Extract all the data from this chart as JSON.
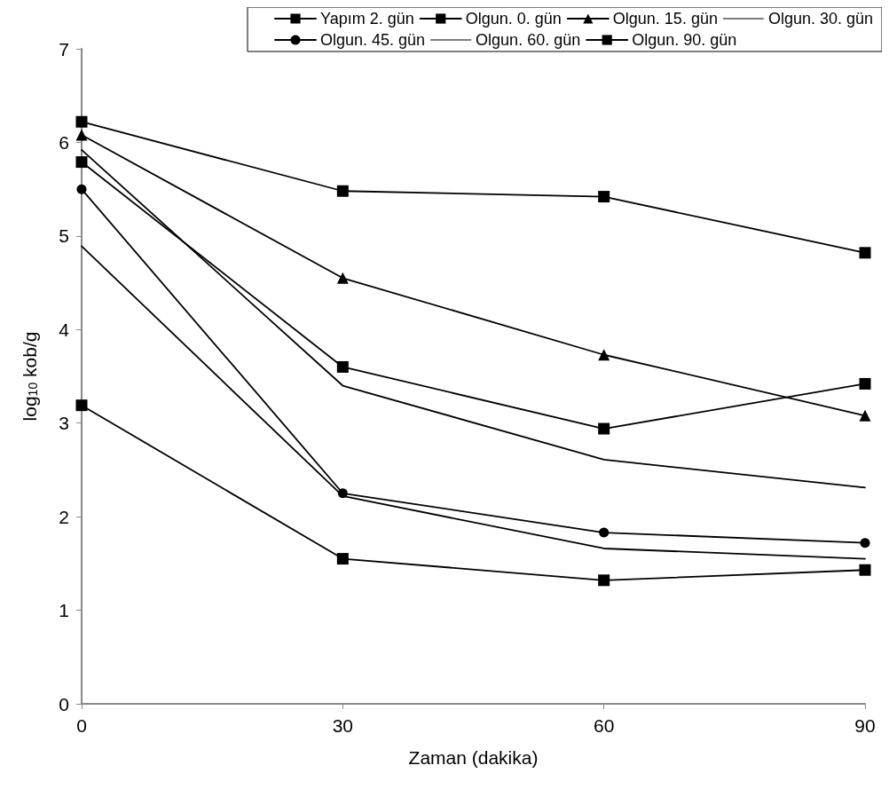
{
  "chart_data": {
    "type": "line",
    "xlabel": "Zaman (dakika)",
    "ylabel": "log$_{10}$ kob/g",
    "x": [
      0,
      30,
      60,
      90
    ],
    "xlim": [
      0,
      90
    ],
    "xticks": [
      0,
      30,
      60,
      90
    ],
    "ylim": [
      0,
      7
    ],
    "yticks": [
      0,
      1,
      2,
      3,
      4,
      5,
      6,
      7
    ],
    "grid": false,
    "legend": "top right",
    "series": [
      {
        "name": "Yapım 2. gün",
        "color": "#000000",
        "marker": "square",
        "values": [
          5.79,
          3.6,
          2.94,
          3.42
        ]
      },
      {
        "name": "Olgun. 0. gün",
        "color": "#000000",
        "marker": "square",
        "values": [
          6.22,
          5.48,
          5.42,
          4.82
        ]
      },
      {
        "name": "Olgun. 15. gün",
        "color": "#000000",
        "marker": "triangle",
        "values": [
          6.08,
          4.55,
          3.73,
          3.08
        ]
      },
      {
        "name": "Olgun. 30. gün",
        "color": "#000000",
        "marker": "none",
        "values": [
          5.92,
          3.4,
          2.61,
          2.31
        ]
      },
      {
        "name": "Olgun. 45. gün",
        "color": "#000000",
        "marker": "circle",
        "values": [
          5.5,
          2.25,
          1.83,
          1.72
        ]
      },
      {
        "name": "Olgun. 60. gün",
        "color": "#000000",
        "marker": "none",
        "values": [
          4.89,
          2.22,
          1.66,
          1.55
        ]
      },
      {
        "name": "Olgun. 90. gün",
        "color": "#000000",
        "marker": "square",
        "values": [
          3.19,
          1.55,
          1.32,
          1.43
        ]
      }
    ]
  }
}
